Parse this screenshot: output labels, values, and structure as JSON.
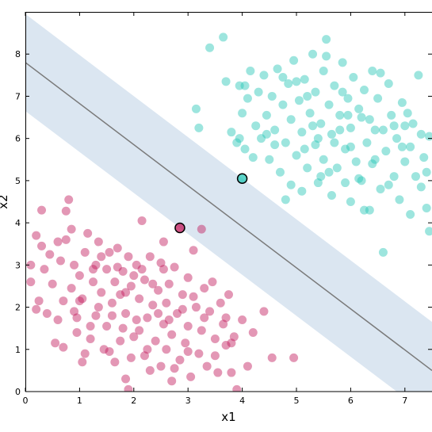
{
  "chart_data": {
    "type": "scatter",
    "title": "",
    "xlabel": "x1",
    "ylabel": "x2",
    "xlim": [
      0,
      7.5
    ],
    "ylim": [
      0,
      9
    ],
    "xticks": [
      0,
      1,
      2,
      3,
      4,
      5,
      6,
      7
    ],
    "yticks": [
      0,
      1,
      2,
      3,
      4,
      5,
      6,
      7,
      8
    ],
    "grid": false,
    "legend": "none",
    "colors": {
      "class_0": "#c2185b",
      "class_1": "#26c6b5",
      "margin_band": "#dbe6f1",
      "decision_line": "#7a7a7a",
      "support_vector_edge": "#000000"
    },
    "decision_boundary": {
      "x_at_0": 0,
      "y_at_0": 7.8,
      "x_at_end": 7.5,
      "y_at_end": 0.5
    },
    "margin_upper": [
      [
        0,
        8.95
      ],
      [
        7.5,
        1.65
      ]
    ],
    "margin_lower": [
      [
        0,
        6.65
      ],
      [
        6.85,
        0
      ]
    ],
    "support_vectors": [
      {
        "x": 4.0,
        "y": 5.05,
        "class": 1
      },
      {
        "x": 2.85,
        "y": 3.88,
        "class": 0
      }
    ],
    "series": [
      {
        "class": 0,
        "points": [
          [
            0.1,
            3.0
          ],
          [
            0.2,
            3.7
          ],
          [
            0.2,
            1.95
          ],
          [
            0.1,
            2.6
          ],
          [
            0.3,
            4.3
          ],
          [
            0.35,
            2.9
          ],
          [
            0.45,
            3.25
          ],
          [
            0.5,
            2.55
          ],
          [
            0.55,
            1.15
          ],
          [
            0.6,
            1.7
          ],
          [
            0.6,
            3.55
          ],
          [
            0.65,
            3.1
          ],
          [
            0.7,
            2.15
          ],
          [
            0.75,
            4.28
          ],
          [
            0.8,
            4.55
          ],
          [
            0.85,
            2.45
          ],
          [
            0.85,
            3.85
          ],
          [
            0.9,
            1.9
          ],
          [
            0.9,
            3.0
          ],
          [
            0.95,
            1.4
          ],
          [
            1.0,
            2.75
          ],
          [
            1.05,
            0.7
          ],
          [
            1.05,
            2.2
          ],
          [
            1.1,
            3.3
          ],
          [
            1.15,
            3.75
          ],
          [
            1.2,
            1.25
          ],
          [
            1.25,
            2.6
          ],
          [
            1.3,
            1.8
          ],
          [
            1.3,
            3.0
          ],
          [
            1.35,
            3.55
          ],
          [
            1.4,
            2.35
          ],
          [
            1.45,
            1.0
          ],
          [
            1.5,
            2.9
          ],
          [
            1.5,
            1.55
          ],
          [
            1.55,
            3.3
          ],
          [
            1.6,
            2.1
          ],
          [
            1.65,
            0.7
          ],
          [
            1.65,
            2.6
          ],
          [
            1.7,
            3.4
          ],
          [
            1.75,
            1.2
          ],
          [
            1.75,
            2.3
          ],
          [
            1.8,
            2.85
          ],
          [
            1.85,
            0.3
          ],
          [
            1.85,
            1.85
          ],
          [
            1.9,
            3.2
          ],
          [
            1.9,
            0.05
          ],
          [
            1.95,
            2.5
          ],
          [
            2.0,
            2.75
          ],
          [
            2.0,
            1.3
          ],
          [
            2.05,
            3.0
          ],
          [
            2.1,
            2.2
          ],
          [
            2.1,
            1.45
          ],
          [
            2.15,
            4.05
          ],
          [
            2.2,
            0.85
          ],
          [
            2.2,
            2.65
          ],
          [
            2.25,
            1.75
          ],
          [
            2.3,
            3.2
          ],
          [
            2.3,
            0.5
          ],
          [
            2.35,
            2.05
          ],
          [
            2.4,
            1.2
          ],
          [
            2.45,
            2.4
          ],
          [
            2.5,
            3.05
          ],
          [
            2.5,
            0.6
          ],
          [
            2.55,
            1.6
          ],
          [
            2.6,
            2.1
          ],
          [
            2.6,
            1.0
          ],
          [
            2.65,
            2.55
          ],
          [
            2.7,
            0.25
          ],
          [
            2.7,
            1.35
          ],
          [
            2.75,
            2.95
          ],
          [
            2.8,
            1.85
          ],
          [
            2.85,
            0.75
          ],
          [
            2.9,
            2.3
          ],
          [
            2.95,
            1.15
          ],
          [
            3.0,
            2.7
          ],
          [
            3.0,
            1.55
          ],
          [
            3.05,
            0.35
          ],
          [
            3.1,
            3.35
          ],
          [
            3.15,
            2.0
          ],
          [
            3.2,
            0.9
          ],
          [
            3.25,
            1.45
          ],
          [
            3.3,
            2.45
          ],
          [
            3.35,
            0.6
          ],
          [
            3.4,
            1.9
          ],
          [
            3.45,
            2.6
          ],
          [
            3.5,
            1.25
          ],
          [
            3.55,
            0.45
          ],
          [
            3.6,
            2.1
          ],
          [
            3.65,
            1.6
          ],
          [
            3.7,
            1.1
          ],
          [
            3.75,
            2.3
          ],
          [
            3.8,
            0.45
          ],
          [
            3.85,
            1.3
          ],
          [
            3.9,
            0.05
          ],
          [
            4.0,
            1.7
          ],
          [
            4.1,
            0.6
          ],
          [
            4.2,
            1.4
          ],
          [
            4.4,
            1.9
          ],
          [
            4.55,
            0.8
          ],
          [
            4.95,
            0.8
          ],
          [
            0.95,
            1.75
          ],
          [
            1.0,
            2.15
          ],
          [
            1.1,
            0.9
          ],
          [
            1.2,
            1.55
          ],
          [
            1.25,
            2.9
          ],
          [
            1.35,
            2.0
          ],
          [
            1.4,
            3.2
          ],
          [
            1.55,
            0.95
          ],
          [
            1.6,
            1.8
          ],
          [
            1.7,
            2.95
          ],
          [
            1.8,
            1.5
          ],
          [
            1.85,
            2.35
          ],
          [
            1.95,
            0.8
          ],
          [
            2.05,
            1.7
          ],
          [
            2.15,
            2.9
          ],
          [
            2.25,
            1.0
          ],
          [
            2.35,
            2.55
          ],
          [
            2.45,
            1.85
          ],
          [
            2.55,
            2.9
          ],
          [
            2.65,
            1.7
          ],
          [
            2.75,
            0.55
          ],
          [
            2.9,
            1.95
          ],
          [
            3.0,
            0.95
          ],
          [
            3.1,
            2.25
          ],
          [
            3.3,
            1.75
          ],
          [
            3.5,
            0.85
          ],
          [
            3.7,
            1.75
          ],
          [
            3.8,
            1.15
          ],
          [
            0.3,
            3.45
          ],
          [
            0.25,
            2.15
          ],
          [
            0.7,
            1.05
          ],
          [
            0.75,
            3.6
          ],
          [
            0.4,
            1.85
          ],
          [
            3.25,
            3.85
          ],
          [
            2.55,
            3.55
          ]
        ]
      },
      {
        "class": 1,
        "points": [
          [
            3.15,
            6.7
          ],
          [
            3.2,
            6.25
          ],
          [
            3.4,
            8.15
          ],
          [
            3.65,
            8.4
          ],
          [
            3.7,
            7.35
          ],
          [
            3.8,
            6.15
          ],
          [
            3.9,
            5.9
          ],
          [
            3.95,
            7.25
          ],
          [
            4.0,
            6.6
          ],
          [
            4.05,
            5.75
          ],
          [
            4.1,
            6.95
          ],
          [
            4.15,
            7.6
          ],
          [
            4.2,
            5.55
          ],
          [
            4.25,
            6.3
          ],
          [
            4.3,
            7.1
          ],
          [
            4.35,
            6.0
          ],
          [
            4.4,
            7.5
          ],
          [
            4.45,
            6.55
          ],
          [
            4.5,
            5.5
          ],
          [
            4.55,
            7.0
          ],
          [
            4.6,
            6.2
          ],
          [
            4.65,
            7.65
          ],
          [
            4.7,
            5.2
          ],
          [
            4.75,
            6.8
          ],
          [
            4.8,
            5.9
          ],
          [
            4.85,
            7.3
          ],
          [
            4.9,
            4.9
          ],
          [
            4.9,
            6.45
          ],
          [
            4.95,
            7.85
          ],
          [
            5.0,
            5.6
          ],
          [
            5.05,
            6.9
          ],
          [
            5.1,
            4.75
          ],
          [
            5.1,
            6.15
          ],
          [
            5.15,
            7.4
          ],
          [
            5.2,
            5.3
          ],
          [
            5.25,
            6.6
          ],
          [
            5.3,
            8.0
          ],
          [
            5.35,
            5.85
          ],
          [
            5.35,
            7.1
          ],
          [
            5.4,
            4.95
          ],
          [
            5.45,
            6.35
          ],
          [
            5.5,
            7.6
          ],
          [
            5.5,
            5.5
          ],
          [
            5.55,
            8.35
          ],
          [
            5.6,
            6.8
          ],
          [
            5.65,
            4.65
          ],
          [
            5.65,
            6.1
          ],
          [
            5.7,
            7.25
          ],
          [
            5.75,
            5.3
          ],
          [
            5.8,
            6.55
          ],
          [
            5.85,
            7.8
          ],
          [
            5.9,
            5.75
          ],
          [
            5.95,
            6.95
          ],
          [
            6.0,
            4.5
          ],
          [
            6.0,
            6.25
          ],
          [
            6.05,
            7.45
          ],
          [
            6.1,
            5.45
          ],
          [
            6.15,
            6.7
          ],
          [
            6.2,
            5.0
          ],
          [
            6.25,
            7.15
          ],
          [
            6.3,
            5.9
          ],
          [
            6.35,
            4.3
          ],
          [
            6.35,
            6.45
          ],
          [
            6.4,
            7.6
          ],
          [
            6.45,
            5.5
          ],
          [
            6.5,
            6.95
          ],
          [
            6.55,
            4.8
          ],
          [
            6.6,
            6.2
          ],
          [
            6.6,
            3.3
          ],
          [
            6.65,
            5.7
          ],
          [
            6.7,
            7.3
          ],
          [
            6.75,
            6.55
          ],
          [
            6.8,
            5.1
          ],
          [
            6.85,
            6.0
          ],
          [
            6.9,
            4.55
          ],
          [
            6.95,
            6.85
          ],
          [
            7.0,
            5.45
          ],
          [
            7.0,
            6.3
          ],
          [
            7.1,
            5.8
          ],
          [
            7.1,
            4.2
          ],
          [
            7.15,
            6.35
          ],
          [
            7.2,
            5.1
          ],
          [
            7.25,
            7.5
          ],
          [
            7.3,
            6.1
          ],
          [
            7.3,
            4.85
          ],
          [
            7.35,
            5.55
          ],
          [
            7.4,
            4.35
          ],
          [
            7.45,
            6.05
          ],
          [
            7.45,
            3.8
          ],
          [
            7.4,
            5.2
          ],
          [
            5.0,
            7.35
          ],
          [
            5.2,
            7.0
          ],
          [
            5.4,
            6.0
          ],
          [
            5.6,
            5.2
          ],
          [
            5.8,
            6.2
          ],
          [
            6.0,
            5.8
          ],
          [
            6.2,
            6.5
          ],
          [
            6.4,
            5.4
          ],
          [
            5.3,
            6.3
          ],
          [
            5.7,
            5.9
          ],
          [
            4.6,
            5.85
          ],
          [
            4.75,
            7.45
          ],
          [
            5.55,
            7.95
          ],
          [
            5.9,
            4.95
          ],
          [
            6.15,
            5.05
          ],
          [
            6.45,
            6.2
          ],
          [
            6.7,
            4.9
          ],
          [
            6.95,
            5.8
          ],
          [
            4.45,
            6.1
          ],
          [
            5.15,
            5.75
          ],
          [
            4.8,
            4.55
          ],
          [
            5.85,
            7.1
          ],
          [
            6.25,
            4.3
          ],
          [
            6.55,
            7.55
          ],
          [
            7.05,
            6.6
          ],
          [
            4.05,
            7.25
          ],
          [
            3.95,
            6.0
          ],
          [
            5.45,
            5.1
          ],
          [
            5.95,
            6.55
          ],
          [
            6.8,
            6.3
          ]
        ]
      }
    ]
  }
}
